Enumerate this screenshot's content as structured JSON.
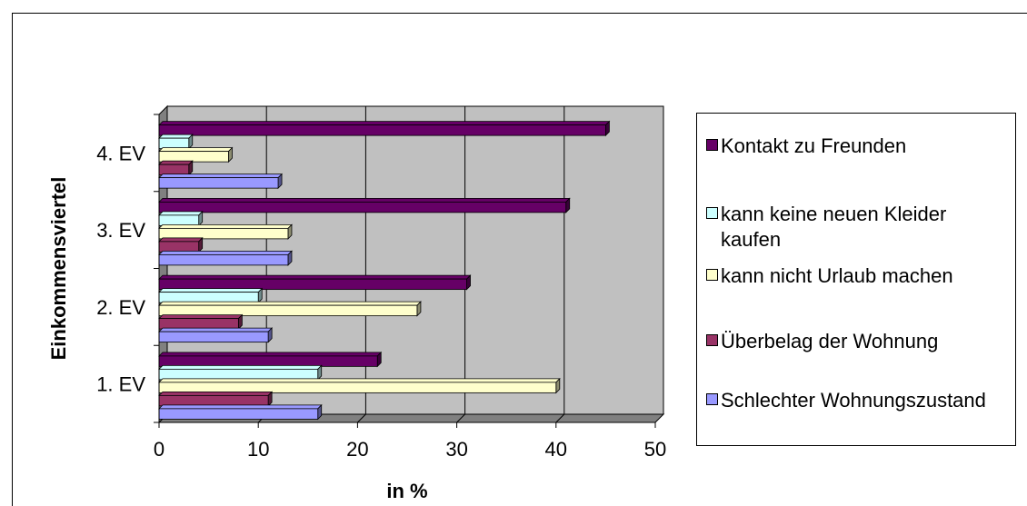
{
  "chart_data": {
    "type": "bar",
    "orientation": "horizontal",
    "categories": [
      "1. EV",
      "2. EV",
      "3. EV",
      "4. EV"
    ],
    "series": [
      {
        "name": "Schlechter Wohnungszustand",
        "color": "#9999ff",
        "values": [
          16,
          11,
          13,
          12
        ]
      },
      {
        "name": "Überbelag der Wohnung",
        "color": "#993366",
        "values": [
          11,
          8,
          4,
          3
        ]
      },
      {
        "name": "kann nicht Urlaub machen",
        "color": "#ffffcc",
        "values": [
          40,
          26,
          13,
          7
        ]
      },
      {
        "name": "kann keine neuen Kleider kaufen",
        "color": "#ccffff",
        "values": [
          16,
          10,
          4,
          3
        ]
      },
      {
        "name": "Kontakt zu Freunden",
        "color": "#660066",
        "values": [
          22,
          31,
          41,
          45
        ]
      }
    ],
    "xlabel": "in %",
    "ylabel": "Einkommensviertel",
    "xlim": [
      0,
      50
    ],
    "xticks": [
      "0",
      "10",
      "20",
      "30",
      "40",
      "50"
    ],
    "grid": true,
    "legend_position": "right",
    "legend_order": [
      "Kontakt zu Freunden",
      "kann keine neuen Kleider kaufen",
      "kann nicht Urlaub machen",
      "Überbelag der Wohnung",
      "Schlechter Wohnungszustand"
    ]
  },
  "colors": {
    "plot_wall": "#c0c0c0",
    "plot_floor": "#808080"
  }
}
